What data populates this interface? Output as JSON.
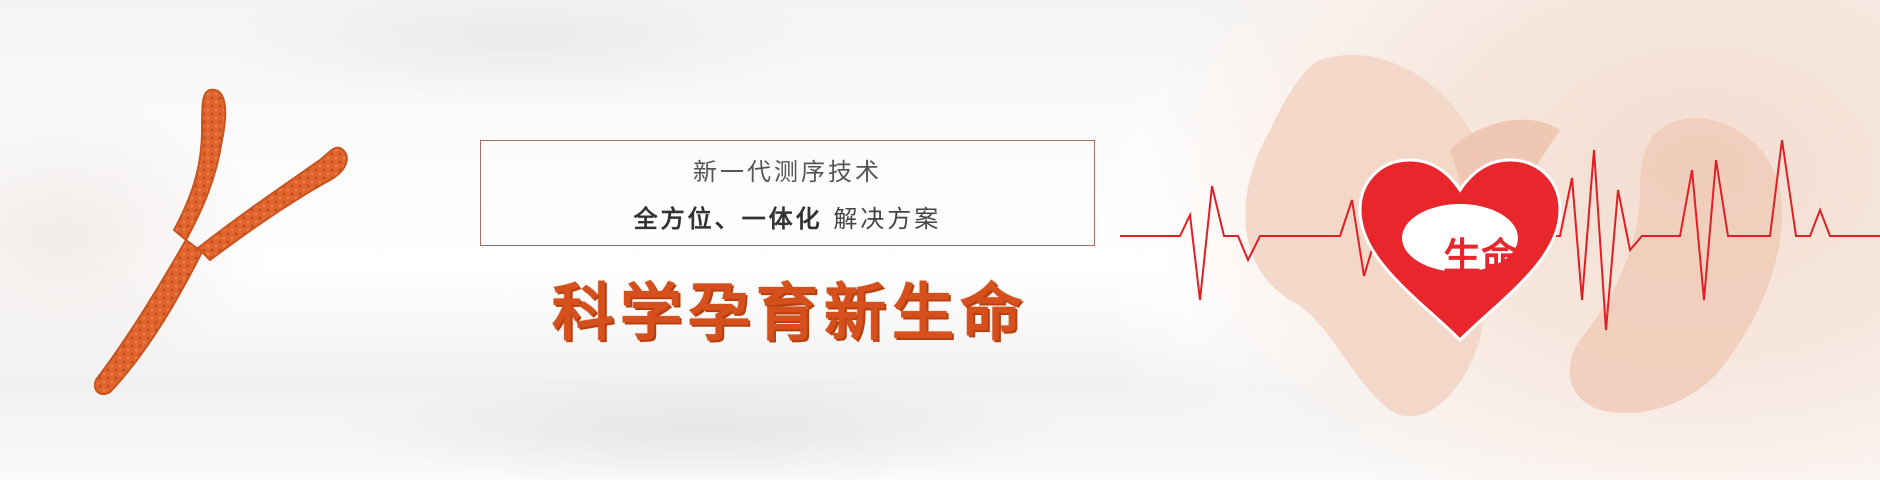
{
  "banner": {
    "tagline_line1": "新一代测序技术",
    "tagline_line2_bold": "全方位、一体化",
    "tagline_line2_rest": "解决方案",
    "slogan": "科学孕育新生命",
    "heart_text": "生命"
  },
  "colors": {
    "slogan": "#d5501d",
    "heart": "#e8262c",
    "heartbeat_line": "#e01f25",
    "chromosome": "#e0662e",
    "frame_border": "#a56d64"
  }
}
